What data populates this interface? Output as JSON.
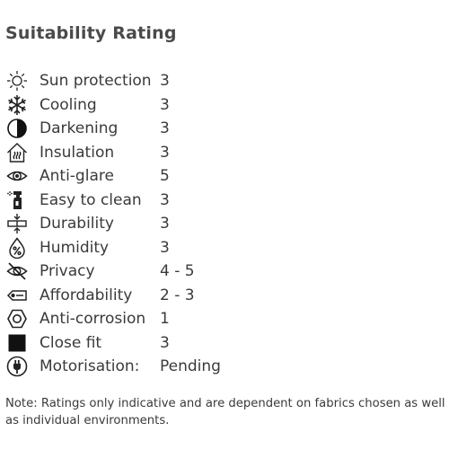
{
  "title": "Suitability Rating",
  "ratings": [
    {
      "icon": "sun-icon",
      "label": "Sun protection",
      "value": "3"
    },
    {
      "icon": "snowflake-icon",
      "label": "Cooling",
      "value": "3"
    },
    {
      "icon": "half-circle-icon",
      "label": "Darkening",
      "value": "3"
    },
    {
      "icon": "house-heat-icon",
      "label": "Insulation",
      "value": "3"
    },
    {
      "icon": "eye-icon",
      "label": "Anti-glare",
      "value": "5"
    },
    {
      "icon": "spray-bottle-icon",
      "label": "Easy to clean",
      "value": "3"
    },
    {
      "icon": "durability-icon",
      "label": "Durability",
      "value": "3"
    },
    {
      "icon": "humidity-drop-icon",
      "label": "Humidity",
      "value": "3"
    },
    {
      "icon": "eye-slash-icon",
      "label": "Privacy",
      "value": "4 - 5"
    },
    {
      "icon": "price-tag-icon",
      "label": "Affordability",
      "value": "2 - 3"
    },
    {
      "icon": "hex-nut-icon",
      "label": "Anti-corrosion",
      "value": "1"
    },
    {
      "icon": "square-icon",
      "label": "Close fit",
      "value": "3"
    },
    {
      "icon": "plug-icon",
      "label": "Motorisation:",
      "value": "Pending"
    }
  ],
  "note": "Note: Ratings only indicative and are dependent on fabrics chosen as well as individual environments."
}
